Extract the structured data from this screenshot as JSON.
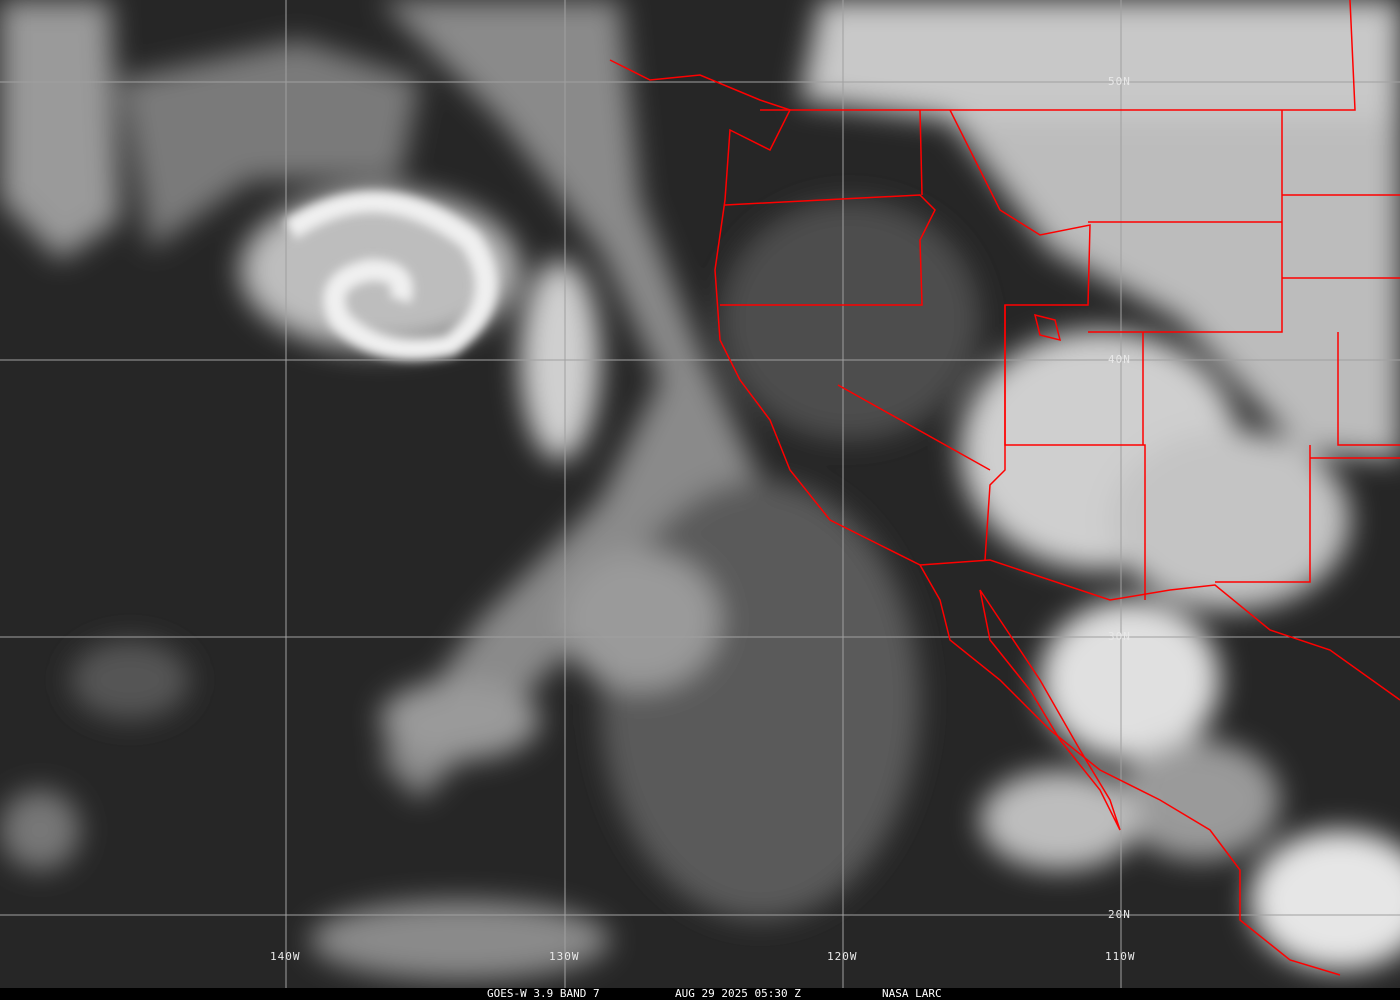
{
  "image": {
    "satellite": "GOES-W",
    "product": "3.9 BAND 7",
    "datetime": "AUG 29 2025 05:30 Z",
    "credit": "NASA LARC",
    "footer_text": {
      "sat_band": "GOES-W 3.9 BAND 7",
      "datetime": "AUG 29 2025 05:30 Z",
      "credit": "NASA LARC"
    }
  },
  "grid": {
    "latitude_labels": [
      "50N",
      "40N",
      "30N",
      "20N"
    ],
    "longitude_labels": [
      "140W",
      "130W",
      "120W",
      "110W"
    ]
  },
  "colors": {
    "borders": "#ff0000",
    "grid": "#a0a0a0",
    "background": "#000000"
  }
}
